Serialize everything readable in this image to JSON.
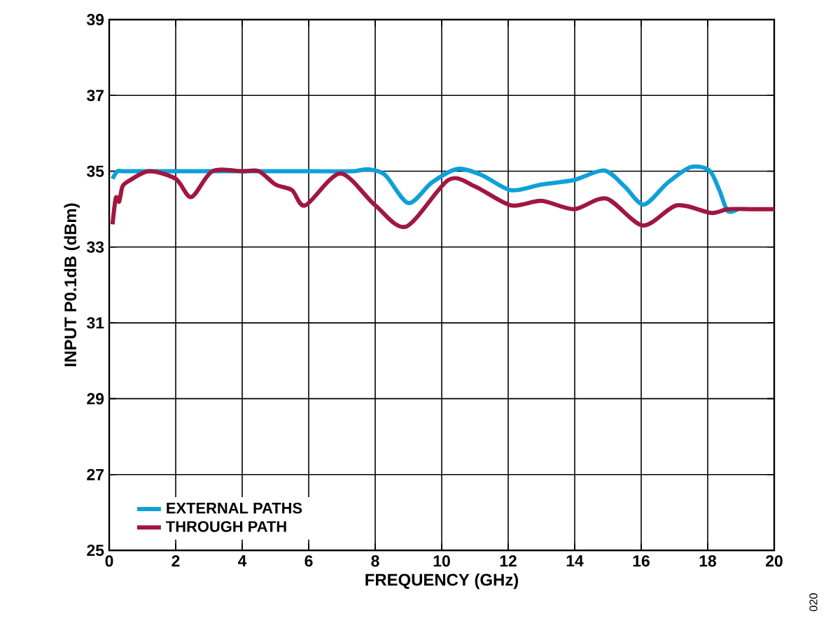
{
  "chart_data": {
    "type": "line",
    "xlabel": "FREQUENCY (GHz)",
    "ylabel": "INPUT P0.1dB (dBm)",
    "xlim": [
      0,
      20
    ],
    "ylim": [
      25,
      39
    ],
    "xticks": [
      0,
      2,
      4,
      6,
      8,
      10,
      12,
      14,
      16,
      18,
      20
    ],
    "yticks": [
      25,
      27,
      29,
      31,
      33,
      35,
      37,
      39
    ],
    "grid": true,
    "legend": "bottom left",
    "marker": "none",
    "line_style": "solid",
    "annotations": [
      "020"
    ],
    "series": [
      {
        "name": "EXTERNAL PATHS",
        "color": "#0ea0d8",
        "x": [
          0.1,
          0.25,
          0.5,
          2,
          4,
          6,
          7.3,
          7.8,
          8.3,
          9.0,
          9.7,
          10.47,
          11.2,
          12.08,
          13.0,
          13.98,
          14.89,
          15.5,
          16.08,
          16.8,
          17.49,
          18.05,
          18.35,
          18.6,
          18.9
        ],
        "values": [
          34.8,
          35.0,
          35.0,
          35.0,
          35.0,
          35.0,
          35.0,
          35.05,
          34.9,
          34.16,
          34.7,
          35.06,
          34.9,
          34.5,
          34.65,
          34.77,
          35.02,
          34.6,
          34.12,
          34.7,
          35.11,
          35.02,
          34.5,
          33.95,
          34.0
        ]
      },
      {
        "name": "THROUGH PATH",
        "color": "#a0173f",
        "x": [
          0.1,
          0.2,
          0.3,
          0.4,
          0.6,
          1.2,
          2.0,
          2.47,
          3.1,
          4.0,
          4.5,
          5.0,
          5.5,
          5.9,
          6.95,
          8.0,
          8.93,
          10.2,
          11.0,
          12.08,
          13.0,
          13.98,
          14.95,
          16.05,
          17.07,
          18.1,
          18.6,
          19.3,
          20.0
        ],
        "values": [
          33.6,
          34.3,
          34.2,
          34.6,
          34.75,
          35.0,
          34.8,
          34.32,
          35.0,
          35.0,
          35.0,
          34.65,
          34.5,
          34.1,
          34.94,
          34.1,
          33.54,
          34.77,
          34.6,
          34.1,
          34.22,
          34.0,
          34.28,
          33.57,
          34.1,
          33.9,
          34.0,
          34.0,
          34.0
        ]
      }
    ]
  }
}
